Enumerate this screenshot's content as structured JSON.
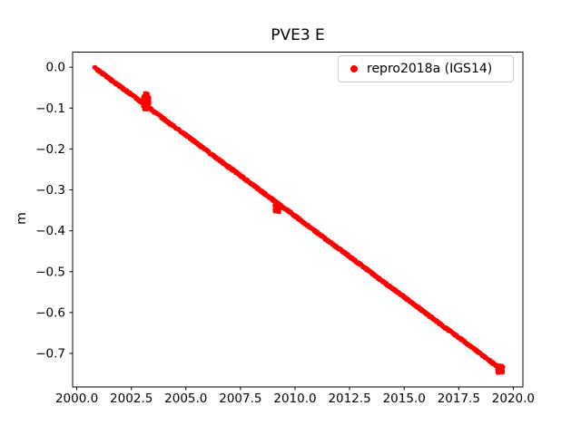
{
  "figure": {
    "background": "#ffffff",
    "axes_border_color": "#000000",
    "tick_color": "#000000"
  },
  "chart_data": {
    "type": "scatter",
    "title": "PVE3 E",
    "xlabel": "",
    "ylabel": "m",
    "grid": false,
    "xlim": [
      1999.81,
      2020.44
    ],
    "ylim": [
      -0.782,
      0.037
    ],
    "xticks": [
      2000.0,
      2002.5,
      2005.0,
      2007.5,
      2010.0,
      2012.5,
      2015.0,
      2017.5,
      2020.0
    ],
    "yticks": [
      0.0,
      -0.1,
      -0.2,
      -0.3,
      -0.4,
      -0.5,
      -0.6,
      -0.7
    ],
    "legend": {
      "position": "upper right",
      "entries": [
        {
          "label": "repro2018a (IGS14)",
          "color": "#ff0000",
          "marker": "circle"
        }
      ]
    },
    "series": [
      {
        "name": "repro2018a (IGS14)",
        "color": "#ff0000",
        "marker": "circle",
        "marker_size_px": 4,
        "trend": {
          "x_start": 2000.8,
          "y_start": 0.0,
          "x_end": 2019.5,
          "y_end": -0.74,
          "slope_m_per_yr": -0.0396
        },
        "x": [
          2000.8,
          2001.3,
          2001.8,
          2002.3,
          2002.8,
          2003.3,
          2003.8,
          2004.3,
          2004.8,
          2005.3,
          2005.8,
          2006.3,
          2006.8,
          2007.3,
          2007.8,
          2008.3,
          2008.8,
          2009.3,
          2009.8,
          2010.3,
          2010.8,
          2011.3,
          2011.8,
          2012.3,
          2012.8,
          2013.3,
          2013.8,
          2014.3,
          2014.8,
          2015.3,
          2015.8,
          2016.3,
          2016.8,
          2017.3,
          2017.8,
          2018.3,
          2018.8,
          2019.3,
          2019.5
        ],
        "y": [
          0.0,
          -0.02,
          -0.04,
          -0.059,
          -0.079,
          -0.099,
          -0.119,
          -0.139,
          -0.158,
          -0.178,
          -0.198,
          -0.218,
          -0.238,
          -0.257,
          -0.277,
          -0.297,
          -0.317,
          -0.337,
          -0.356,
          -0.376,
          -0.396,
          -0.416,
          -0.436,
          -0.455,
          -0.475,
          -0.495,
          -0.515,
          -0.535,
          -0.554,
          -0.574,
          -0.594,
          -0.614,
          -0.634,
          -0.653,
          -0.673,
          -0.693,
          -0.713,
          -0.733,
          -0.74
        ],
        "anomalies": [
          {
            "x_range": [
              2003.02,
              2003.35
            ],
            "y_range": [
              -0.062,
              -0.105
            ],
            "note": "dense scatter cluster around trend"
          },
          {
            "x_range": [
              2009.05,
              2009.3
            ],
            "y_range": [
              -0.335,
              -0.355
            ],
            "note": "small offset below trend"
          },
          {
            "x_range": [
              2019.25,
              2019.55
            ],
            "y_range": [
              -0.728,
              -0.748
            ],
            "note": "end-of-series cluster"
          }
        ]
      }
    ]
  }
}
